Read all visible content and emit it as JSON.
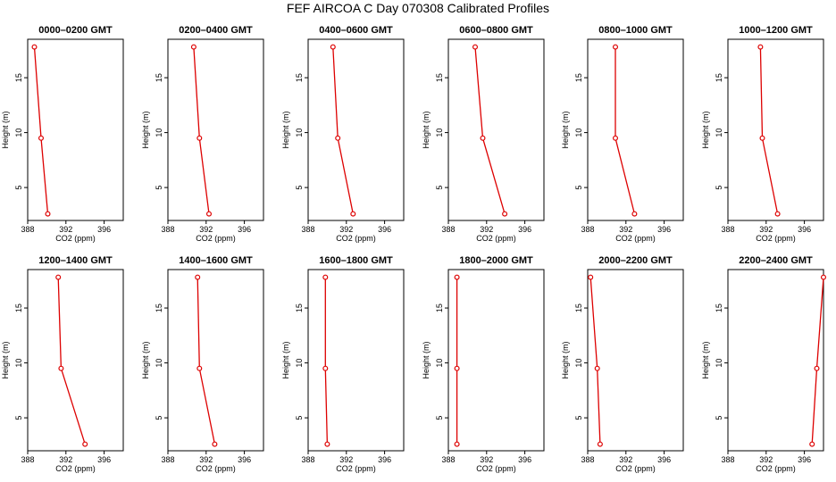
{
  "title": "FEF AIRCOA C  Day 070308  Calibrated Profiles",
  "chart_data": [
    {
      "type": "line",
      "title": "0000–0200 GMT",
      "xlabel": "CO2 (ppm)",
      "ylabel": "Height (m)",
      "xlim": [
        388,
        398
      ],
      "ylim": [
        2,
        18.5
      ],
      "xticks": [
        388,
        392,
        396
      ],
      "yticks": [
        5,
        10,
        15
      ],
      "color": "#dd0000",
      "x": [
        388.7,
        389.4,
        390.1
      ],
      "y": [
        17.8,
        9.5,
        2.6
      ]
    },
    {
      "type": "line",
      "title": "0200–0400 GMT",
      "xlabel": "CO2 (ppm)",
      "ylabel": "Height (m)",
      "xlim": [
        388,
        398
      ],
      "ylim": [
        2,
        18.5
      ],
      "xticks": [
        388,
        392,
        396
      ],
      "yticks": [
        5,
        10,
        15
      ],
      "color": "#dd0000",
      "x": [
        390.7,
        391.3,
        392.3
      ],
      "y": [
        17.8,
        9.5,
        2.6
      ]
    },
    {
      "type": "line",
      "title": "0400–0600 GMT",
      "xlabel": "CO2 (ppm)",
      "ylabel": "Height (m)",
      "xlim": [
        388,
        398
      ],
      "ylim": [
        2,
        18.5
      ],
      "xticks": [
        388,
        392,
        396
      ],
      "yticks": [
        5,
        10,
        15
      ],
      "color": "#dd0000",
      "x": [
        390.6,
        391.1,
        392.7
      ],
      "y": [
        17.8,
        9.5,
        2.6
      ]
    },
    {
      "type": "line",
      "title": "0600–0800 GMT",
      "xlabel": "CO2 (ppm)",
      "ylabel": "Height (m)",
      "xlim": [
        388,
        398
      ],
      "ylim": [
        2,
        18.5
      ],
      "xticks": [
        388,
        392,
        396
      ],
      "yticks": [
        5,
        10,
        15
      ],
      "color": "#dd0000",
      "x": [
        390.8,
        391.6,
        393.9
      ],
      "y": [
        17.8,
        9.5,
        2.6
      ]
    },
    {
      "type": "line",
      "title": "0800–1000 GMT",
      "xlabel": "CO2 (ppm)",
      "ylabel": "Height (m)",
      "xlim": [
        388,
        398
      ],
      "ylim": [
        2,
        18.5
      ],
      "xticks": [
        388,
        392,
        396
      ],
      "yticks": [
        5,
        10,
        15
      ],
      "color": "#dd0000",
      "x": [
        390.9,
        390.9,
        392.9
      ],
      "y": [
        17.8,
        9.5,
        2.6
      ]
    },
    {
      "type": "line",
      "title": "1000–1200 GMT",
      "xlabel": "CO2 (ppm)",
      "ylabel": "Height (m)",
      "xlim": [
        388,
        398
      ],
      "ylim": [
        2,
        18.5
      ],
      "xticks": [
        388,
        392,
        396
      ],
      "yticks": [
        5,
        10,
        15
      ],
      "color": "#dd0000",
      "x": [
        391.4,
        391.6,
        393.2
      ],
      "y": [
        17.8,
        9.5,
        2.6
      ]
    },
    {
      "type": "line",
      "title": "1200–1400 GMT",
      "xlabel": "CO2 (ppm)",
      "ylabel": "Height (m)",
      "xlim": [
        388,
        398
      ],
      "ylim": [
        2,
        18.5
      ],
      "xticks": [
        388,
        392,
        396
      ],
      "yticks": [
        5,
        10,
        15
      ],
      "color": "#dd0000",
      "x": [
        391.2,
        391.5,
        394.0
      ],
      "y": [
        17.8,
        9.5,
        2.6
      ]
    },
    {
      "type": "line",
      "title": "1400–1600 GMT",
      "xlabel": "CO2 (ppm)",
      "ylabel": "Height (m)",
      "xlim": [
        388,
        398
      ],
      "ylim": [
        2,
        18.5
      ],
      "xticks": [
        388,
        392,
        396
      ],
      "yticks": [
        5,
        10,
        15
      ],
      "color": "#dd0000",
      "x": [
        391.1,
        391.3,
        392.9
      ],
      "y": [
        17.8,
        9.5,
        2.6
      ]
    },
    {
      "type": "line",
      "title": "1600–1800 GMT",
      "xlabel": "CO2 (ppm)",
      "ylabel": "Height (m)",
      "xlim": [
        388,
        398
      ],
      "ylim": [
        2,
        18.5
      ],
      "xticks": [
        388,
        392,
        396
      ],
      "yticks": [
        5,
        10,
        15
      ],
      "color": "#dd0000",
      "x": [
        389.8,
        389.8,
        390.0
      ],
      "y": [
        17.8,
        9.5,
        2.6
      ]
    },
    {
      "type": "line",
      "title": "1800–2000 GMT",
      "xlabel": "CO2 (ppm)",
      "ylabel": "Height (m)",
      "xlim": [
        388,
        398
      ],
      "ylim": [
        2,
        18.5
      ],
      "xticks": [
        388,
        392,
        396
      ],
      "yticks": [
        5,
        10,
        15
      ],
      "color": "#dd0000",
      "x": [
        388.9,
        388.9,
        388.9
      ],
      "y": [
        17.8,
        9.5,
        2.6
      ]
    },
    {
      "type": "line",
      "title": "2000–2200 GMT",
      "xlabel": "CO2 (ppm)",
      "ylabel": "Height (m)",
      "xlim": [
        388,
        398
      ],
      "ylim": [
        2,
        18.5
      ],
      "xticks": [
        388,
        392,
        396
      ],
      "yticks": [
        5,
        10,
        15
      ],
      "color": "#dd0000",
      "x": [
        388.3,
        389.0,
        389.3
      ],
      "y": [
        17.8,
        9.5,
        2.6
      ]
    },
    {
      "type": "line",
      "title": "2200–2400 GMT",
      "xlabel": "CO2 (ppm)",
      "ylabel": "Height (m)",
      "xlim": [
        388,
        398
      ],
      "ylim": [
        2,
        18.5
      ],
      "xticks": [
        388,
        392,
        396
      ],
      "yticks": [
        5,
        10,
        15
      ],
      "color": "#dd0000",
      "x": [
        398.0,
        397.3,
        396.8
      ],
      "y": [
        17.8,
        9.5,
        2.6
      ]
    }
  ]
}
